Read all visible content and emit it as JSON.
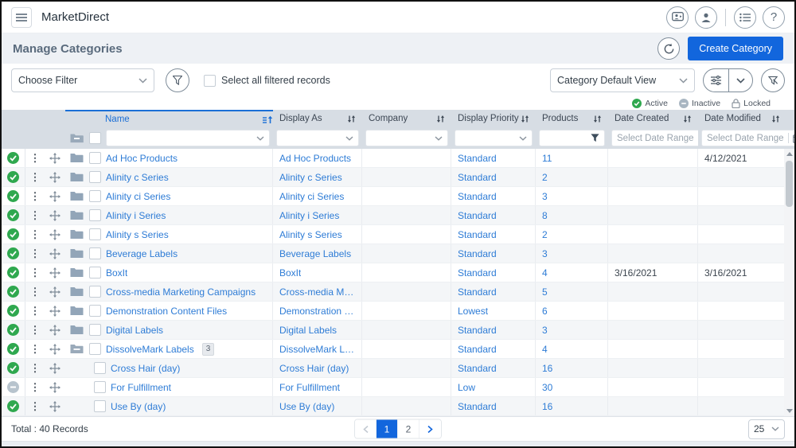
{
  "topbar": {
    "title": "MarketDirect"
  },
  "page_header": {
    "title": "Manage Categories",
    "create_button_label": "Create Category"
  },
  "toolbar": {
    "filter_select_value": "Choose Filter",
    "select_all_label": "Select all filtered records",
    "view_select_value": "Category Default View"
  },
  "legend": {
    "active_label": "Active",
    "inactive_label": "Inactive",
    "locked_label": "Locked"
  },
  "table": {
    "columns": [
      "Name",
      "Display As",
      "Company",
      "Display Priority",
      "Products",
      "Date Created",
      "Date Modified"
    ],
    "date_filter_placeholder": "Select Date Range",
    "rows": [
      {
        "status": "active",
        "folder": "closed",
        "child": false,
        "name": "Ad Hoc Products",
        "badge": "",
        "display_as": "Ad Hoc Products",
        "company": "",
        "priority": "Standard",
        "products": "11",
        "date_created": "",
        "date_modified": "4/12/2021"
      },
      {
        "status": "active",
        "folder": "closed",
        "child": false,
        "name": "Alinity c Series",
        "badge": "",
        "display_as": "Alinity c Series",
        "company": "",
        "priority": "Standard",
        "products": "2",
        "date_created": "",
        "date_modified": ""
      },
      {
        "status": "active",
        "folder": "closed",
        "child": false,
        "name": "Alinity ci Series",
        "badge": "",
        "display_as": "Alinity ci Series",
        "company": "",
        "priority": "Standard",
        "products": "3",
        "date_created": "",
        "date_modified": ""
      },
      {
        "status": "active",
        "folder": "closed",
        "child": false,
        "name": "Alinity i Series",
        "badge": "",
        "display_as": "Alinity i Series",
        "company": "",
        "priority": "Standard",
        "products": "8",
        "date_created": "",
        "date_modified": ""
      },
      {
        "status": "active",
        "folder": "closed",
        "child": false,
        "name": "Alinity s Series",
        "badge": "",
        "display_as": "Alinity s Series",
        "company": "",
        "priority": "Standard",
        "products": "2",
        "date_created": "",
        "date_modified": ""
      },
      {
        "status": "active",
        "folder": "closed",
        "child": false,
        "name": "Beverage Labels",
        "badge": "",
        "display_as": "Beverage Labels",
        "company": "",
        "priority": "Standard",
        "products": "3",
        "date_created": "",
        "date_modified": ""
      },
      {
        "status": "active",
        "folder": "closed",
        "child": false,
        "name": "BoxIt",
        "badge": "",
        "display_as": "BoxIt",
        "company": "",
        "priority": "Standard",
        "products": "4",
        "date_created": "3/16/2021",
        "date_modified": "3/16/2021"
      },
      {
        "status": "active",
        "folder": "closed",
        "child": false,
        "name": "Cross-media Marketing Campaigns",
        "badge": "",
        "display_as": "Cross-media Marketin...",
        "company": "",
        "priority": "Standard",
        "products": "5",
        "date_created": "",
        "date_modified": ""
      },
      {
        "status": "active",
        "folder": "closed",
        "child": false,
        "name": "Demonstration Content Files",
        "badge": "",
        "display_as": "Demonstration Conte...",
        "company": "",
        "priority": "Lowest",
        "products": "6",
        "date_created": "",
        "date_modified": ""
      },
      {
        "status": "active",
        "folder": "closed",
        "child": false,
        "name": "Digital Labels",
        "badge": "",
        "display_as": "Digital Labels",
        "company": "",
        "priority": "Standard",
        "products": "3",
        "date_created": "",
        "date_modified": ""
      },
      {
        "status": "active",
        "folder": "open",
        "child": false,
        "name": "DissolveMark Labels",
        "badge": "3",
        "display_as": "DissolveMark Labels",
        "company": "",
        "priority": "Standard",
        "products": "4",
        "date_created": "",
        "date_modified": ""
      },
      {
        "status": "active",
        "folder": "none",
        "child": true,
        "name": "Cross Hair (day)",
        "badge": "",
        "display_as": "Cross Hair (day)",
        "company": "",
        "priority": "Standard",
        "products": "16",
        "date_created": "",
        "date_modified": ""
      },
      {
        "status": "inactive",
        "folder": "none",
        "child": true,
        "name": "For Fulfillment",
        "badge": "",
        "display_as": "For Fulfillment",
        "company": "",
        "priority": "Low",
        "products": "30",
        "date_created": "",
        "date_modified": ""
      },
      {
        "status": "active",
        "folder": "none",
        "child": true,
        "name": "Use By (day)",
        "badge": "",
        "display_as": "Use By (day)",
        "company": "",
        "priority": "Standard",
        "products": "16",
        "date_created": "",
        "date_modified": ""
      }
    ]
  },
  "footer": {
    "total_label": "Total : 40 Records",
    "pages": [
      "1",
      "2"
    ],
    "active_page": "1",
    "page_size": "25"
  },
  "colors": {
    "accent_blue": "#1266dd",
    "link_blue": "#2e7cd6",
    "active_green": "#2fa84f",
    "inactive_gray": "#a9b6c2",
    "header_bg": "#d7dde4"
  }
}
